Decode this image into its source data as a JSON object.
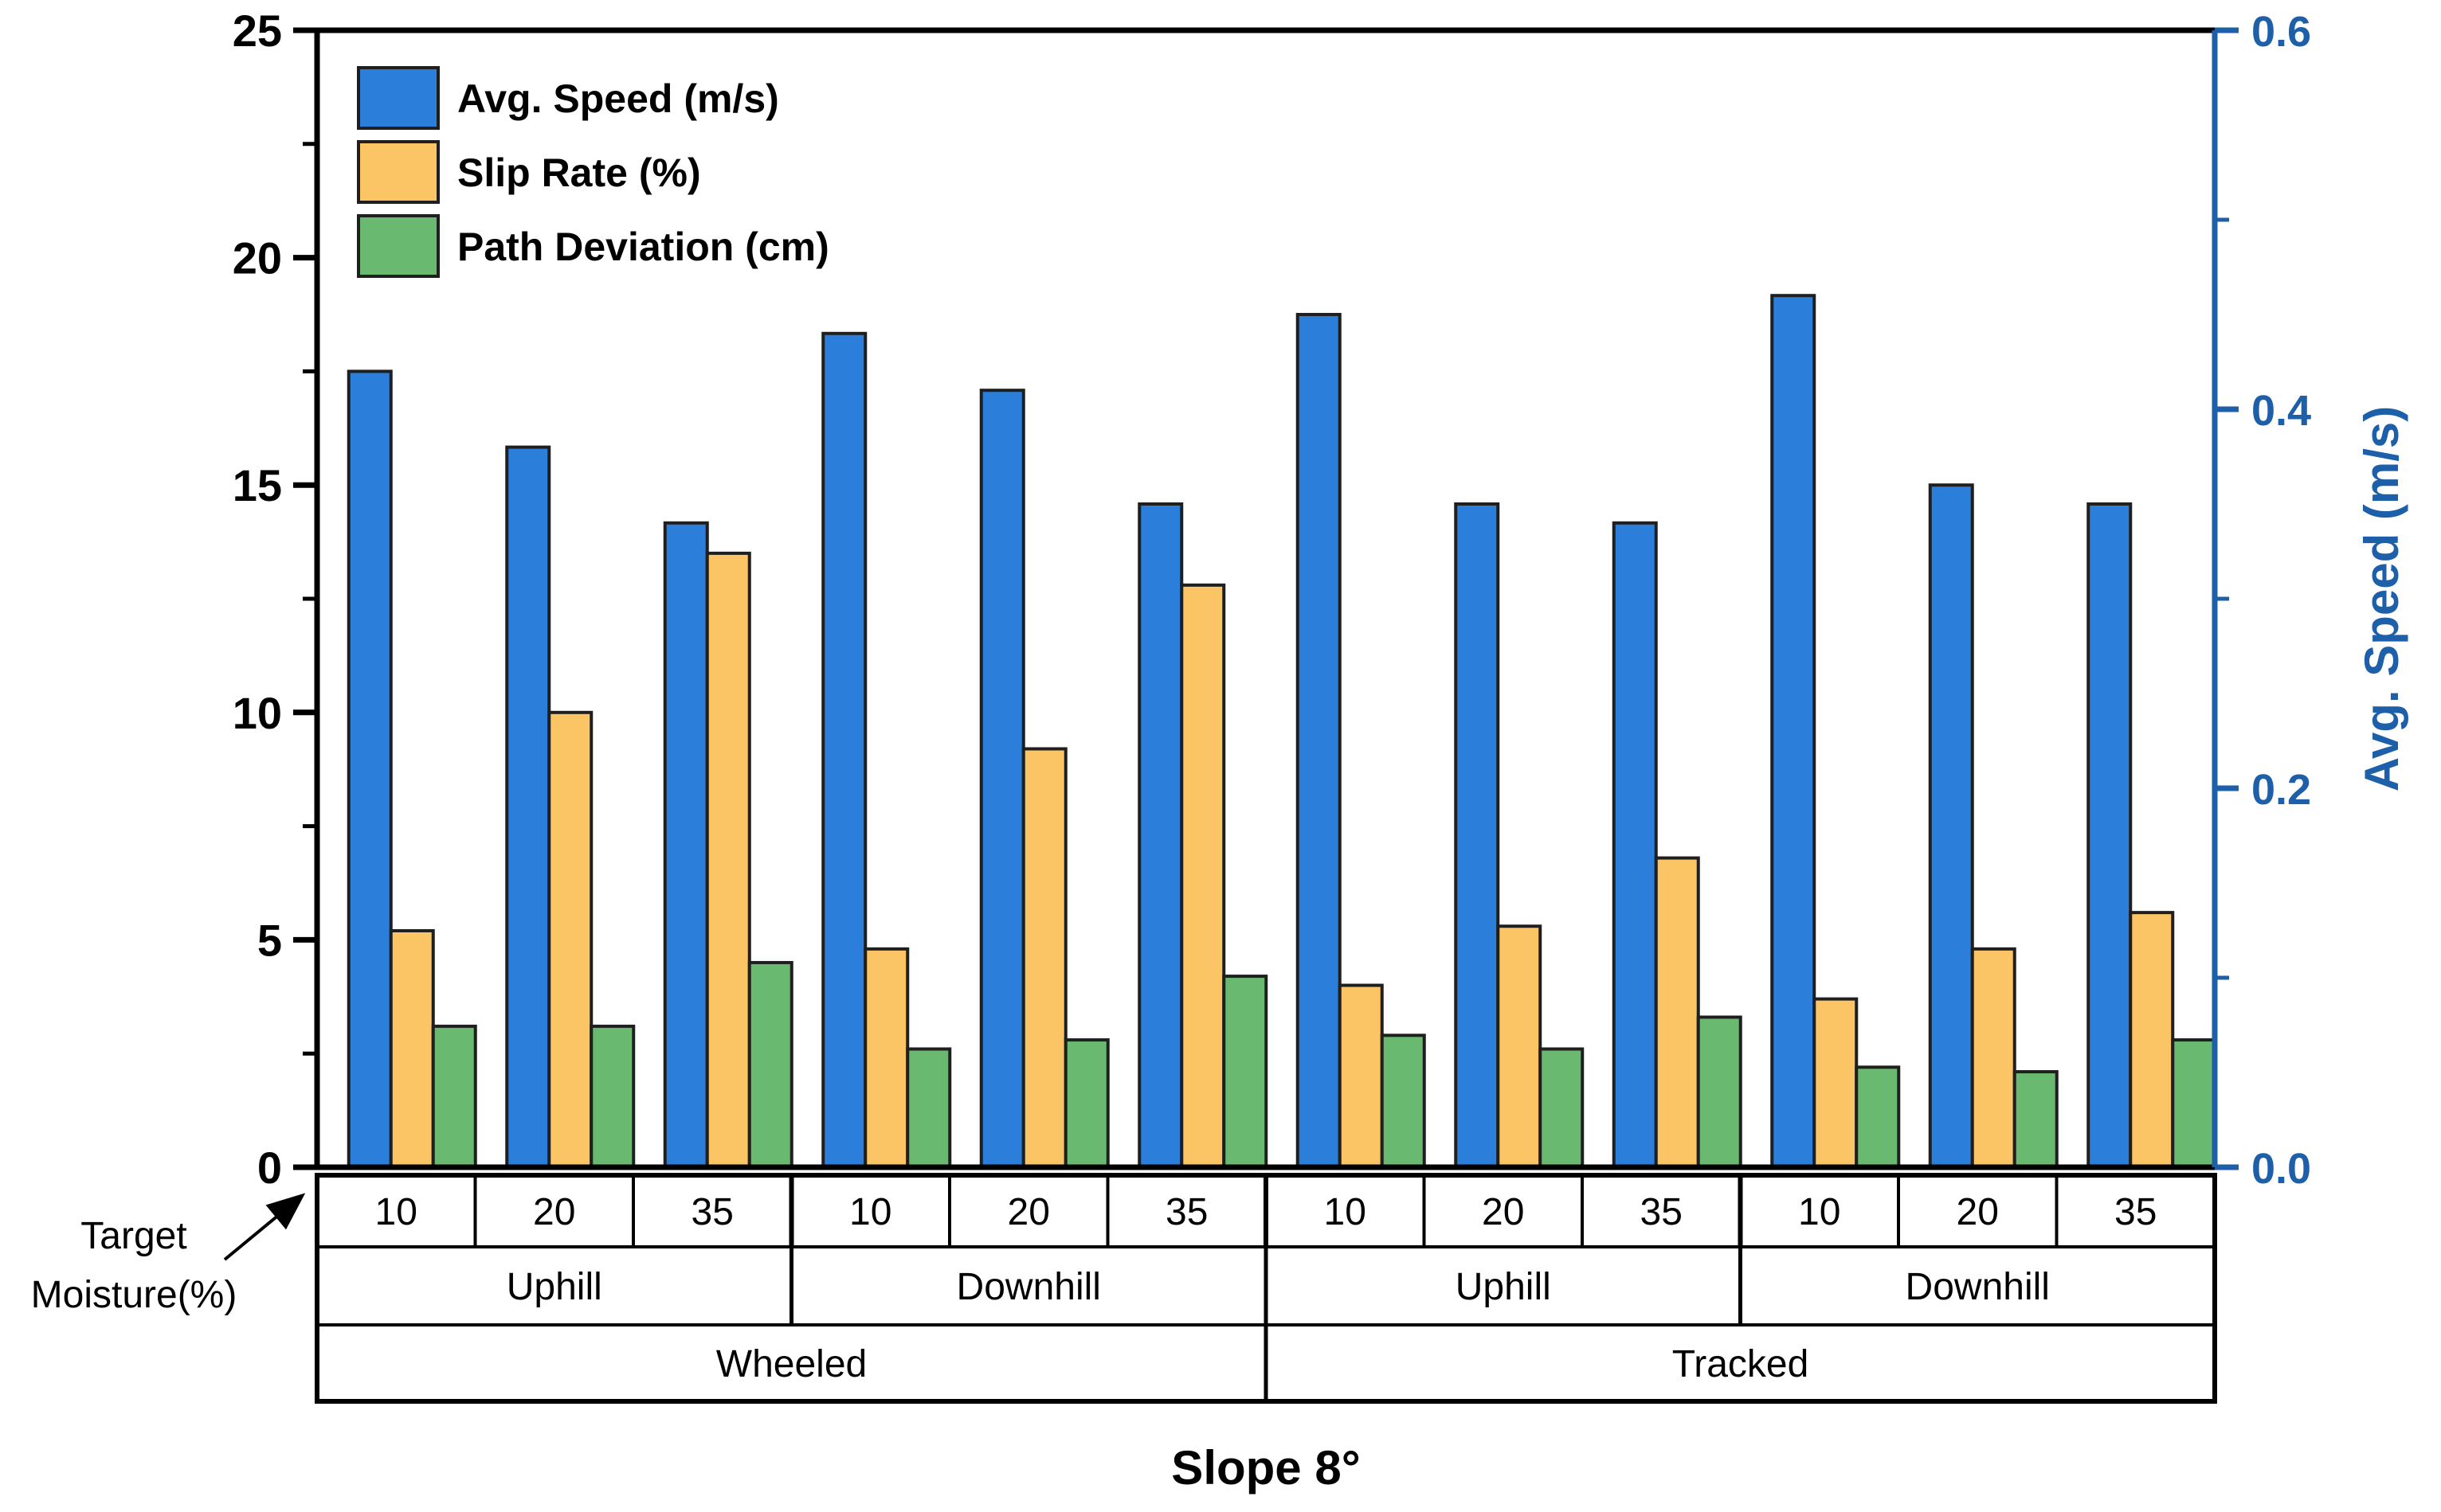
{
  "figure": {
    "title": "Slope 8°",
    "x_annotation": {
      "line1": "Target",
      "line2": "Moisture(%)"
    },
    "left_axis": {
      "tick_labels": [
        "0",
        "5",
        "10",
        "15",
        "20",
        "25"
      ],
      "range": [
        0,
        25
      ]
    },
    "right_axis": {
      "title": "Avg. Speed (m/s)",
      "tick_labels": [
        "0.0",
        "0.2",
        "0.4",
        "0.6"
      ],
      "range": [
        0.0,
        0.6
      ],
      "color": "#1E5FA9"
    },
    "legend": {
      "items": [
        {
          "label": "Avg. Speed (m/s)",
          "color": "#2B7FDB"
        },
        {
          "label": "Slip Rate (%)",
          "color": "#FBC464"
        },
        {
          "label": "Path Deviation (cm)",
          "color": "#69BA70"
        }
      ]
    }
  },
  "chart_data": {
    "type": "bar",
    "title": "Slope 8°",
    "grid": false,
    "legend_position": "top-left",
    "left_ylim": [
      0,
      25
    ],
    "right_ylim": [
      0.0,
      0.6
    ],
    "x_levels": {
      "moisture_pct": [
        "10",
        "20",
        "35",
        "10",
        "20",
        "35",
        "10",
        "20",
        "35",
        "10",
        "20",
        "35"
      ],
      "direction": [
        {
          "label": "Uphill",
          "span": 3
        },
        {
          "label": "Downhill",
          "span": 3
        },
        {
          "label": "Uphill",
          "span": 3
        },
        {
          "label": "Downhill",
          "span": 3
        }
      ],
      "vehicle": [
        {
          "label": "Wheeled",
          "span": 6
        },
        {
          "label": "Tracked",
          "span": 6
        }
      ],
      "axis_annotation": "Target Moisture(%)"
    },
    "series": [
      {
        "name": "Avg. Speed (m/s)",
        "axis": "right",
        "unit": "m/s",
        "color": "#2B7FDB",
        "values": [
          0.42,
          0.38,
          0.34,
          0.44,
          0.41,
          0.35,
          0.45,
          0.35,
          0.34,
          0.46,
          0.36,
          0.35
        ]
      },
      {
        "name": "Slip Rate (%)",
        "axis": "left",
        "unit": "%",
        "color": "#FBC464",
        "values": [
          5.2,
          10.0,
          13.5,
          4.8,
          9.2,
          12.8,
          4.0,
          5.3,
          6.8,
          3.7,
          4.8,
          5.6
        ]
      },
      {
        "name": "Path Deviation (cm)",
        "axis": "left",
        "unit": "cm",
        "color": "#69BA70",
        "values": [
          3.1,
          3.1,
          4.5,
          2.6,
          2.8,
          4.2,
          2.9,
          2.6,
          3.3,
          2.2,
          2.1,
          2.8
        ]
      }
    ]
  }
}
